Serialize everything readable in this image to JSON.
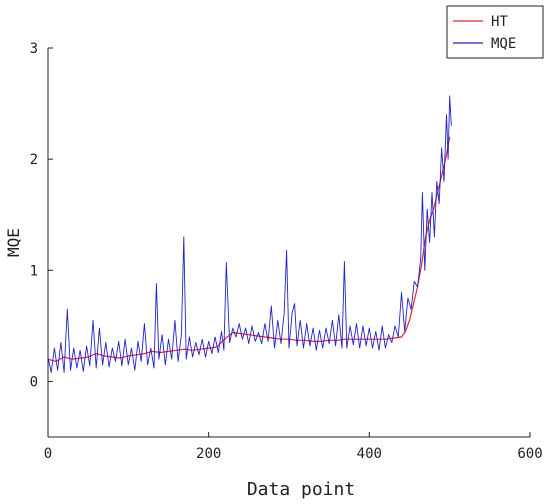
{
  "chart_data": {
    "type": "line",
    "title": "",
    "xlabel": "Data point",
    "ylabel": "MQE",
    "xlim": [
      0,
      600
    ],
    "ylim": [
      -0.5,
      3
    ],
    "xticks": [
      0,
      200,
      400,
      600
    ],
    "yticks": [
      0,
      1,
      2,
      3
    ],
    "grid": false,
    "legend_position": "top-right",
    "series": [
      {
        "name": "HT",
        "color": "#e8232a",
        "note": "points are [data point index, MQE]",
        "points": [
          [
            0,
            0.2
          ],
          [
            10,
            0.18
          ],
          [
            20,
            0.22
          ],
          [
            30,
            0.2
          ],
          [
            40,
            0.21
          ],
          [
            50,
            0.22
          ],
          [
            60,
            0.25
          ],
          [
            70,
            0.23
          ],
          [
            80,
            0.22
          ],
          [
            90,
            0.21
          ],
          [
            100,
            0.23
          ],
          [
            110,
            0.24
          ],
          [
            120,
            0.25
          ],
          [
            130,
            0.27
          ],
          [
            140,
            0.26
          ],
          [
            150,
            0.27
          ],
          [
            160,
            0.28
          ],
          [
            170,
            0.29
          ],
          [
            180,
            0.28
          ],
          [
            190,
            0.29
          ],
          [
            200,
            0.3
          ],
          [
            210,
            0.31
          ],
          [
            220,
            0.38
          ],
          [
            230,
            0.44
          ],
          [
            240,
            0.43
          ],
          [
            250,
            0.42
          ],
          [
            260,
            0.41
          ],
          [
            270,
            0.4
          ],
          [
            280,
            0.39
          ],
          [
            290,
            0.38
          ],
          [
            300,
            0.38
          ],
          [
            310,
            0.37
          ],
          [
            320,
            0.37
          ],
          [
            330,
            0.36
          ],
          [
            340,
            0.36
          ],
          [
            350,
            0.37
          ],
          [
            360,
            0.37
          ],
          [
            370,
            0.38
          ],
          [
            380,
            0.38
          ],
          [
            390,
            0.38
          ],
          [
            400,
            0.38
          ],
          [
            410,
            0.38
          ],
          [
            420,
            0.38
          ],
          [
            430,
            0.39
          ],
          [
            440,
            0.4
          ],
          [
            445,
            0.45
          ],
          [
            450,
            0.55
          ],
          [
            455,
            0.7
          ],
          [
            460,
            0.85
          ],
          [
            465,
            1.05
          ],
          [
            470,
            1.3
          ],
          [
            475,
            1.45
          ],
          [
            480,
            1.55
          ],
          [
            485,
            1.7
          ],
          [
            490,
            1.85
          ],
          [
            495,
            2.0
          ],
          [
            500,
            2.2
          ]
        ]
      },
      {
        "name": "MQE",
        "color": "#2323c8",
        "note": "points are [data point index, MQE]",
        "points": [
          [
            0,
            0.22
          ],
          [
            4,
            0.08
          ],
          [
            8,
            0.3
          ],
          [
            12,
            0.1
          ],
          [
            16,
            0.35
          ],
          [
            20,
            0.08
          ],
          [
            24,
            0.65
          ],
          [
            28,
            0.1
          ],
          [
            32,
            0.3
          ],
          [
            36,
            0.12
          ],
          [
            40,
            0.28
          ],
          [
            44,
            0.09
          ],
          [
            48,
            0.32
          ],
          [
            52,
            0.14
          ],
          [
            56,
            0.55
          ],
          [
            60,
            0.12
          ],
          [
            64,
            0.48
          ],
          [
            68,
            0.15
          ],
          [
            72,
            0.35
          ],
          [
            76,
            0.13
          ],
          [
            80,
            0.3
          ],
          [
            84,
            0.18
          ],
          [
            88,
            0.36
          ],
          [
            92,
            0.14
          ],
          [
            96,
            0.38
          ],
          [
            100,
            0.15
          ],
          [
            104,
            0.3
          ],
          [
            108,
            0.1
          ],
          [
            112,
            0.36
          ],
          [
            116,
            0.18
          ],
          [
            120,
            0.52
          ],
          [
            124,
            0.15
          ],
          [
            128,
            0.3
          ],
          [
            132,
            0.12
          ],
          [
            135,
            0.88
          ],
          [
            138,
            0.2
          ],
          [
            142,
            0.42
          ],
          [
            146,
            0.15
          ],
          [
            150,
            0.38
          ],
          [
            154,
            0.2
          ],
          [
            158,
            0.55
          ],
          [
            162,
            0.18
          ],
          [
            166,
            0.42
          ],
          [
            169,
            1.3
          ],
          [
            172,
            0.2
          ],
          [
            176,
            0.4
          ],
          [
            180,
            0.22
          ],
          [
            184,
            0.35
          ],
          [
            188,
            0.24
          ],
          [
            192,
            0.38
          ],
          [
            196,
            0.22
          ],
          [
            200,
            0.36
          ],
          [
            204,
            0.25
          ],
          [
            208,
            0.4
          ],
          [
            212,
            0.26
          ],
          [
            216,
            0.45
          ],
          [
            219,
            0.28
          ],
          [
            222,
            1.07
          ],
          [
            226,
            0.35
          ],
          [
            230,
            0.48
          ],
          [
            234,
            0.4
          ],
          [
            238,
            0.52
          ],
          [
            242,
            0.38
          ],
          [
            246,
            0.48
          ],
          [
            250,
            0.34
          ],
          [
            254,
            0.5
          ],
          [
            258,
            0.36
          ],
          [
            262,
            0.44
          ],
          [
            266,
            0.34
          ],
          [
            270,
            0.52
          ],
          [
            274,
            0.36
          ],
          [
            278,
            0.68
          ],
          [
            282,
            0.3
          ],
          [
            286,
            0.55
          ],
          [
            290,
            0.34
          ],
          [
            294,
            0.62
          ],
          [
            297,
            1.18
          ],
          [
            300,
            0.3
          ],
          [
            304,
            0.62
          ],
          [
            307,
            0.7
          ],
          [
            310,
            0.32
          ],
          [
            314,
            0.55
          ],
          [
            318,
            0.3
          ],
          [
            322,
            0.52
          ],
          [
            326,
            0.32
          ],
          [
            330,
            0.48
          ],
          [
            334,
            0.28
          ],
          [
            338,
            0.46
          ],
          [
            342,
            0.3
          ],
          [
            346,
            0.48
          ],
          [
            350,
            0.34
          ],
          [
            354,
            0.55
          ],
          [
            358,
            0.32
          ],
          [
            362,
            0.6
          ],
          [
            366,
            0.3
          ],
          [
            369,
            1.08
          ],
          [
            372,
            0.3
          ],
          [
            376,
            0.5
          ],
          [
            380,
            0.33
          ],
          [
            384,
            0.52
          ],
          [
            388,
            0.3
          ],
          [
            392,
            0.5
          ],
          [
            396,
            0.32
          ],
          [
            400,
            0.48
          ],
          [
            404,
            0.3
          ],
          [
            408,
            0.45
          ],
          [
            412,
            0.28
          ],
          [
            416,
            0.5
          ],
          [
            420,
            0.3
          ],
          [
            424,
            0.42
          ],
          [
            428,
            0.35
          ],
          [
            432,
            0.5
          ],
          [
            436,
            0.4
          ],
          [
            440,
            0.8
          ],
          [
            444,
            0.45
          ],
          [
            448,
            0.75
          ],
          [
            452,
            0.65
          ],
          [
            456,
            0.9
          ],
          [
            460,
            0.85
          ],
          [
            464,
            1.1
          ],
          [
            466,
            1.7
          ],
          [
            469,
            1.0
          ],
          [
            472,
            1.55
          ],
          [
            475,
            1.25
          ],
          [
            478,
            1.7
          ],
          [
            481,
            1.3
          ],
          [
            484,
            1.8
          ],
          [
            487,
            1.6
          ],
          [
            490,
            2.1
          ],
          [
            493,
            1.8
          ],
          [
            496,
            2.4
          ],
          [
            498,
            2.0
          ],
          [
            500,
            2.57
          ],
          [
            502,
            2.3
          ]
        ]
      }
    ]
  }
}
